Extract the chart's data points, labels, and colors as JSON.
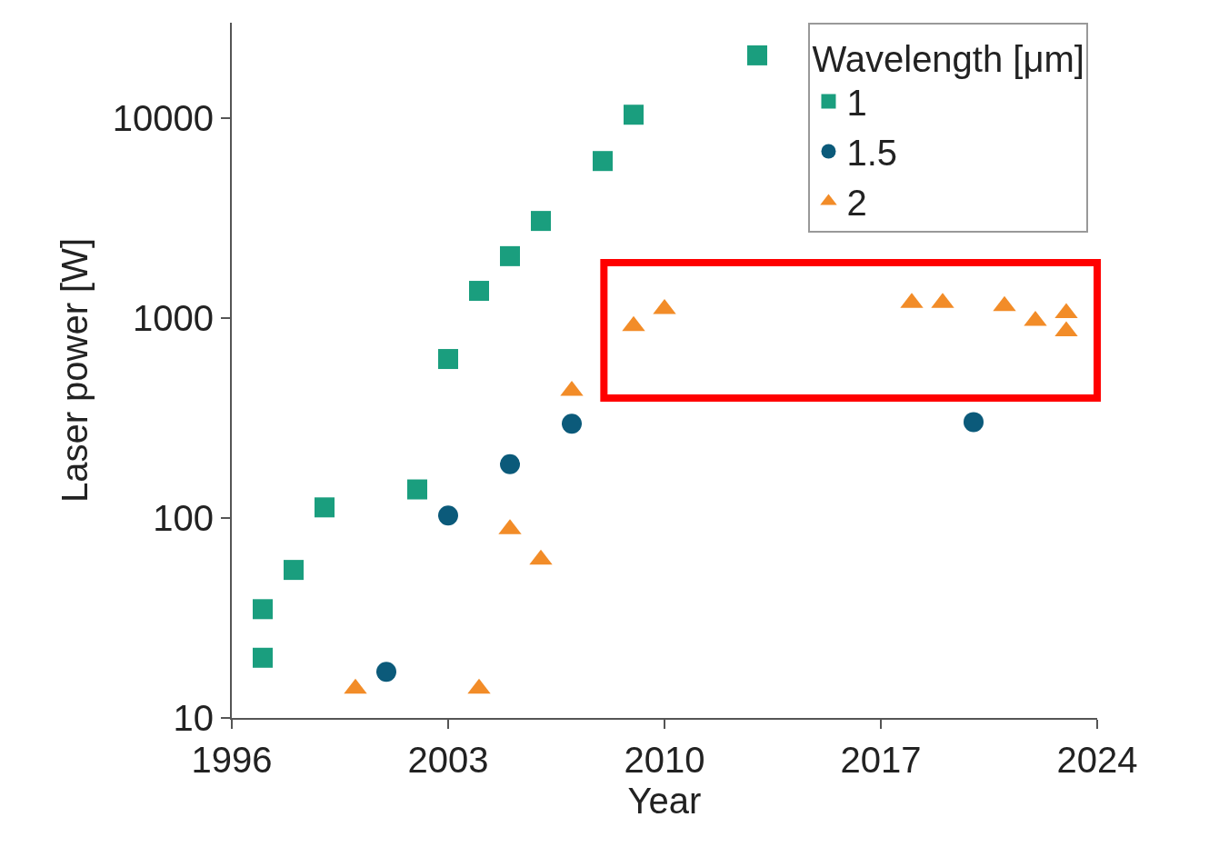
{
  "chart_data": {
    "type": "scatter",
    "xlabel": "Year",
    "ylabel": "Laser power [W]",
    "legend_title": "Wavelength [μm]",
    "legend": "top right",
    "log": "y",
    "xlim": [
      1996,
      2024
    ],
    "xticks": [
      1996,
      2003,
      2010,
      2017,
      2024
    ],
    "ylim": [
      10,
      30000
    ],
    "yticks": [
      10,
      100,
      1000,
      10000
    ],
    "series": [
      {
        "name": "1",
        "color": "#1a9e7e",
        "marker": "square",
        "x": [
          1997,
          1997,
          1998,
          1999,
          2002,
          2003,
          2004,
          2005,
          2006,
          2008,
          2009,
          2013
        ],
        "values": [
          35,
          20,
          55,
          113,
          139,
          624,
          1368,
          2040,
          3060,
          6100,
          10400,
          20600
        ]
      },
      {
        "name": "1.5",
        "color": "#0b5a7a",
        "marker": "circle",
        "x": [
          2001,
          2003,
          2005,
          2007,
          2020
        ],
        "values": [
          17,
          103,
          186,
          296,
          302
        ]
      },
      {
        "name": "2",
        "color": "#f28c28",
        "marker": "triangle",
        "x": [
          2000,
          2004,
          2005,
          2006,
          2007,
          2009,
          2010,
          2018,
          2019,
          2021,
          2022,
          2023,
          2023
        ],
        "values": [
          14,
          14,
          88,
          62,
          433,
          912,
          1110,
          1190,
          1190,
          1150,
          970,
          1060,
          860
        ]
      }
    ]
  }
}
